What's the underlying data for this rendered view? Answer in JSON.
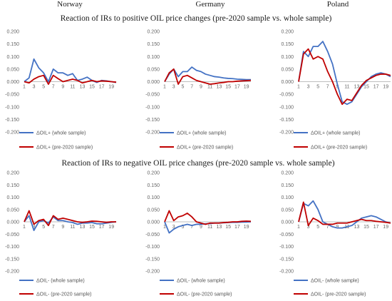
{
  "countries": [
    "Norway",
    "Germany",
    "Poland"
  ],
  "sections": [
    {
      "title": "Reaction of IRs to positive OIL price changes (pre-2020 sample vs. whole sample)"
    },
    {
      "title": "Reaction of IRs to negative OIL price changes (pre-2020 sample vs. whole sample)"
    }
  ],
  "colors": {
    "whole": "#4472C4",
    "pre2020": "#C00000",
    "axis": "#bfbfbf"
  },
  "chart_data": [
    {
      "type": "line",
      "panel": "positive-norway",
      "x": [
        1,
        2,
        3,
        4,
        5,
        6,
        7,
        8,
        9,
        10,
        11,
        12,
        13,
        14,
        15,
        16,
        17,
        18,
        19,
        20
      ],
      "xticks": [
        "1",
        "3",
        "5",
        "7",
        "9",
        "11",
        "13",
        "15",
        "17",
        "19"
      ],
      "yticks": [
        "0.200",
        "0.150",
        "0.100",
        "0.050",
        "0.000",
        "-0.050",
        "-0.100",
        "-0.150",
        "-0.200"
      ],
      "ylim": [
        -0.2,
        0.2
      ],
      "series": [
        {
          "name": "ΔOIL+ (whole sample)",
          "values": [
            0.0,
            0.015,
            0.09,
            0.055,
            0.035,
            0.0,
            0.05,
            0.035,
            0.035,
            0.025,
            0.032,
            0.005,
            0.01,
            0.018,
            0.005,
            -0.003,
            0.005,
            0.003,
            0.0,
            -0.003
          ]
        },
        {
          "name": "ΔOIL+ (pre-2020 sample)",
          "values": [
            0.0,
            -0.005,
            0.01,
            0.02,
            0.025,
            -0.01,
            0.025,
            0.012,
            0.0,
            0.005,
            0.01,
            0.005,
            -0.005,
            0.0,
            0.005,
            0.0,
            0.003,
            0.002,
            0.0,
            -0.002
          ]
        }
      ]
    },
    {
      "type": "line",
      "panel": "positive-germany",
      "x": [
        1,
        2,
        3,
        4,
        5,
        6,
        7,
        8,
        9,
        10,
        11,
        12,
        13,
        14,
        15,
        16,
        17,
        18,
        19,
        20
      ],
      "xticks": [
        "1",
        "3",
        "5",
        "7",
        "9",
        "11",
        "13",
        "15",
        "17",
        "19"
      ],
      "yticks": [
        "0.200",
        "0.150",
        "0.100",
        "0.050",
        "0.000",
        "-0.050",
        "-0.100",
        "-0.150",
        "-0.200"
      ],
      "ylim": [
        -0.2,
        0.2
      ],
      "series": [
        {
          "name": "ΔOIL+ (whole sample)",
          "values": [
            0.0,
            0.03,
            0.05,
            0.02,
            0.04,
            0.04,
            0.058,
            0.045,
            0.04,
            0.03,
            0.025,
            0.02,
            0.018,
            0.015,
            0.013,
            0.012,
            0.01,
            0.009,
            0.008,
            0.008
          ]
        },
        {
          "name": "ΔOIL+ (pre-2020 sample)",
          "values": [
            0.0,
            0.035,
            0.05,
            -0.01,
            0.02,
            0.025,
            0.015,
            0.005,
            0.0,
            -0.005,
            -0.01,
            -0.008,
            -0.005,
            -0.003,
            0.0,
            0.0,
            0.002,
            0.003,
            0.004,
            0.005
          ]
        }
      ]
    },
    {
      "type": "line",
      "panel": "positive-poland",
      "x": [
        1,
        2,
        3,
        4,
        5,
        6,
        7,
        8,
        9,
        10,
        11,
        12,
        13,
        14,
        15,
        16,
        17,
        18,
        19,
        20
      ],
      "xticks": [
        "1",
        "3",
        "5",
        "7",
        "9",
        "11",
        "13",
        "15",
        "17",
        "19"
      ],
      "yticks": [
        "0.200",
        "0.150",
        "0.100",
        "0.050",
        "0.000",
        "-0.050",
        "-0.100",
        "-0.150",
        "-0.200"
      ],
      "ylim": [
        -0.2,
        0.2
      ],
      "series": [
        {
          "name": "ΔOIL+ (whole sample)",
          "values": [
            0.0,
            0.12,
            0.1,
            0.14,
            0.14,
            0.16,
            0.12,
            0.07,
            -0.01,
            -0.08,
            -0.09,
            -0.08,
            -0.05,
            -0.02,
            0.0,
            0.02,
            0.03,
            0.035,
            0.03,
            0.02
          ]
        },
        {
          "name": "ΔOIL+ (pre-2020 sample)",
          "values": [
            0.0,
            0.11,
            0.13,
            0.09,
            0.1,
            0.09,
            0.04,
            0.0,
            -0.05,
            -0.09,
            -0.07,
            -0.075,
            -0.045,
            -0.015,
            0.005,
            0.015,
            0.025,
            0.03,
            0.03,
            0.025
          ]
        }
      ]
    },
    {
      "type": "line",
      "panel": "negative-norway",
      "x": [
        1,
        2,
        3,
        4,
        5,
        6,
        7,
        8,
        9,
        10,
        11,
        12,
        13,
        14,
        15,
        16,
        17,
        18,
        19,
        20
      ],
      "xticks": [
        "1",
        "3",
        "5",
        "7",
        "9",
        "11",
        "13",
        "15",
        "17",
        "19"
      ],
      "yticks": [
        "0.200",
        "0.150",
        "0.100",
        "0.050",
        "0.000",
        "-0.050",
        "-0.100",
        "-0.150",
        "-0.200"
      ],
      "ylim": [
        -0.2,
        0.2
      ],
      "series": [
        {
          "name": "ΔOIL- (whole sample)",
          "values": [
            0.0,
            0.025,
            -0.035,
            0.0,
            0.005,
            -0.005,
            0.02,
            0.005,
            0.005,
            0.0,
            -0.003,
            -0.01,
            -0.005,
            -0.005,
            -0.003,
            -0.008,
            -0.008,
            -0.005,
            -0.002,
            0.0
          ]
        },
        {
          "name": "ΔOIL- (pre-2020 sample)",
          "values": [
            0.0,
            0.045,
            -0.01,
            0.005,
            0.01,
            -0.015,
            0.025,
            0.01,
            0.015,
            0.01,
            0.005,
            0.0,
            -0.002,
            0.0,
            0.003,
            0.002,
            0.0,
            -0.002,
            0.0,
            0.0
          ]
        }
      ]
    },
    {
      "type": "line",
      "panel": "negative-germany",
      "x": [
        1,
        2,
        3,
        4,
        5,
        6,
        7,
        8,
        9,
        10,
        11,
        12,
        13,
        14,
        15,
        16,
        17,
        18,
        19,
        20
      ],
      "xticks": [
        "1",
        "3",
        "5",
        "7",
        "9",
        "11",
        "13",
        "15",
        "17",
        "19"
      ],
      "yticks": [
        "0.200",
        "0.150",
        "0.100",
        "0.050",
        "0.000",
        "-0.050",
        "-0.100",
        "-0.150",
        "-0.200"
      ],
      "ylim": [
        -0.2,
        0.2
      ],
      "series": [
        {
          "name": "ΔOIL- (whole sample)",
          "values": [
            0.0,
            -0.045,
            -0.03,
            -0.02,
            -0.015,
            -0.01,
            -0.015,
            -0.01,
            -0.01,
            -0.008,
            -0.007,
            -0.005,
            -0.005,
            -0.004,
            -0.003,
            -0.002,
            -0.002,
            -0.001,
            -0.001,
            0.0
          ]
        },
        {
          "name": "ΔOIL- (pre-2020 sample)",
          "values": [
            0.0,
            0.045,
            0.005,
            0.02,
            0.025,
            0.035,
            0.02,
            0.0,
            -0.005,
            -0.01,
            -0.005,
            -0.005,
            -0.005,
            -0.003,
            -0.002,
            0.0,
            0.0,
            0.002,
            0.003,
            0.002
          ]
        }
      ]
    },
    {
      "type": "line",
      "panel": "negative-poland",
      "x": [
        1,
        2,
        3,
        4,
        5,
        6,
        7,
        8,
        9,
        10,
        11,
        12,
        13,
        14,
        15,
        16,
        17,
        18,
        19,
        20
      ],
      "xticks": [
        "1",
        "3",
        "5",
        "7",
        "9",
        "11",
        "13",
        "15",
        "17",
        "19"
      ],
      "yticks": [
        "0.200",
        "0.150",
        "0.100",
        "0.050",
        "0.000",
        "-0.050",
        "-0.100",
        "-0.150",
        "-0.200"
      ],
      "ylim": [
        -0.2,
        0.2
      ],
      "series": [
        {
          "name": "ΔOIL- (whole sample)",
          "values": [
            0.0,
            0.075,
            0.065,
            0.085,
            0.05,
            0.0,
            -0.01,
            -0.02,
            -0.025,
            -0.025,
            -0.02,
            -0.015,
            0.0,
            0.015,
            0.02,
            0.025,
            0.02,
            0.01,
            0.0,
            -0.005
          ]
        },
        {
          "name": "ΔOIL- (pre-2020 sample)",
          "values": [
            0.0,
            0.08,
            -0.015,
            0.015,
            0.005,
            -0.01,
            -0.01,
            -0.01,
            -0.005,
            -0.005,
            -0.005,
            0.0,
            0.005,
            0.01,
            0.005,
            0.005,
            0.002,
            0.0,
            -0.002,
            -0.005
          ]
        }
      ]
    }
  ]
}
